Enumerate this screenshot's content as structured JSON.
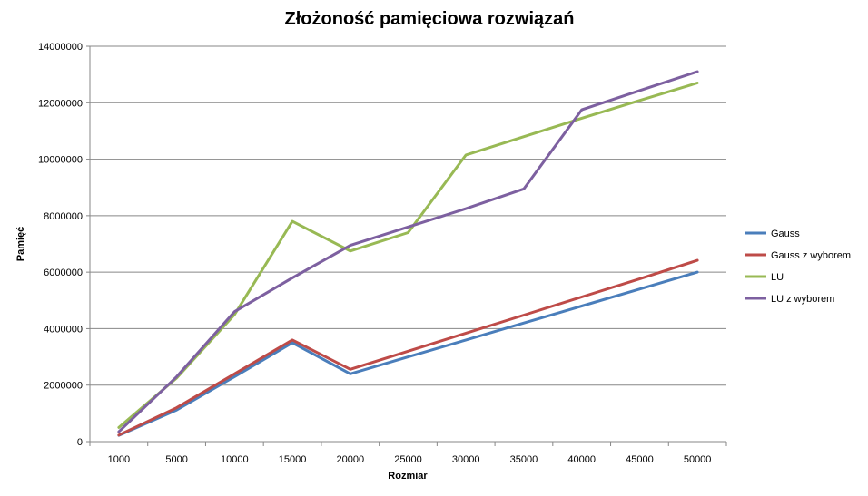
{
  "chart_data": {
    "type": "line",
    "title": "Złożoność pamięciowa rozwiązań",
    "xlabel": "Rozmiar",
    "ylabel": "Pamięć",
    "categories": [
      "1000",
      "5000",
      "10000",
      "15000",
      "20000",
      "25000",
      "30000",
      "35000",
      "40000",
      "45000",
      "50000"
    ],
    "ylim": [
      0,
      14000000
    ],
    "yticks": [
      "0",
      "2000000",
      "4000000",
      "6000000",
      "8000000",
      "10000000",
      "12000000",
      "14000000"
    ],
    "grid": true,
    "legend_position": "right",
    "series": [
      {
        "name": "Gauss",
        "color": "#4A7EBB",
        "values": [
          220000,
          1120000,
          2300000,
          3500000,
          2400000,
          3000000,
          3600000,
          4200000,
          4800000,
          5400000,
          6000000
        ]
      },
      {
        "name": "Gauss z wyborem",
        "color": "#BE4B48",
        "values": [
          230000,
          1200000,
          2400000,
          3600000,
          2560000,
          3200000,
          3840000,
          4480000,
          5120000,
          5760000,
          6420000
        ]
      },
      {
        "name": "LU",
        "color": "#98B954",
        "values": [
          500000,
          2250000,
          4500000,
          7800000,
          6750000,
          7400000,
          10150000,
          10800000,
          11450000,
          12080000,
          12700000
        ]
      },
      {
        "name": "LU z wyborem",
        "color": "#7D60A0",
        "values": [
          350000,
          2300000,
          4600000,
          5800000,
          6950000,
          7600000,
          8250000,
          8950000,
          11750000,
          12430000,
          13100000
        ]
      }
    ]
  }
}
